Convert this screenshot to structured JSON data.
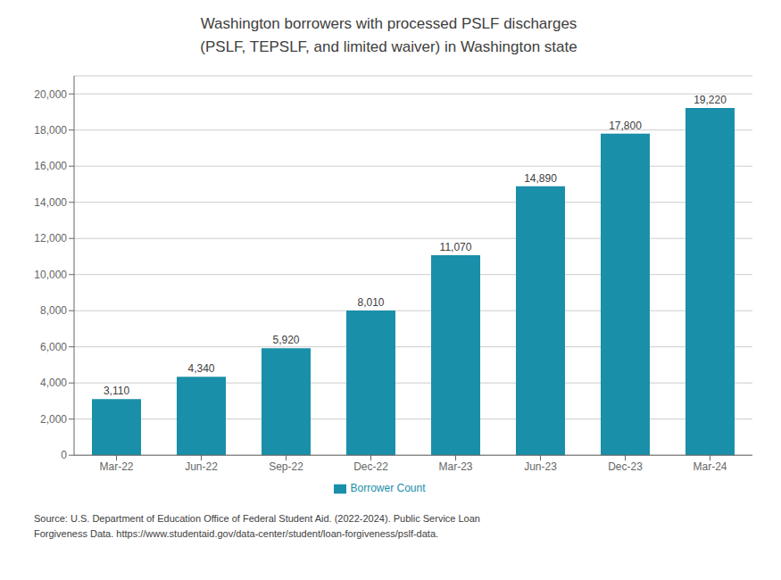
{
  "chart_data": {
    "type": "bar",
    "title": "Washington borrowers with processed PSLF discharges",
    "subtitle": "(PSLF, TEPSLF, and limited waiver) in Washington state",
    "categories": [
      "Mar-22",
      "Jun-22",
      "Sep-22",
      "Dec-22",
      "Mar-23",
      "Jun-23",
      "Dec-23",
      "Mar-24"
    ],
    "series": [
      {
        "name": "Borrower Count",
        "color": "#1A8FAA",
        "values": [
          3110,
          4340,
          5920,
          8010,
          11070,
          14890,
          17800,
          19220
        ],
        "value_labels": [
          "3,110",
          "4,340",
          "5,920",
          "8,010",
          "11,070",
          "14,890",
          "17,800",
          "19,220"
        ]
      }
    ],
    "ylim": [
      0,
      21000
    ],
    "yticks": [
      0,
      {
        "value": 2000,
        "label": "2,000"
      },
      {
        "value": 4000,
        "label": "4,000"
      },
      {
        "value": 6000,
        "label": "6,000"
      },
      {
        "value": 8000,
        "label": "8,000"
      },
      {
        "value": 10000,
        "label": "10,000"
      },
      {
        "value": 12000,
        "label": "12,000"
      },
      {
        "value": 14000,
        "label": "14,000"
      },
      {
        "value": 16000,
        "label": "16,000"
      },
      {
        "value": 18000,
        "label": "18,000"
      },
      {
        "value": 20000,
        "label": "20,000"
      }
    ],
    "grid": true,
    "legend": "bottom",
    "data_labels": true,
    "annotations": [
      "Source: U.S. Department of Education Office of Federal Student Aid. (2022-2024). Public Service Loan",
      "Forgiveness Data. https://www.studentaid.gov/data-center/student/loan-forgiveness/pslf-data."
    ]
  }
}
